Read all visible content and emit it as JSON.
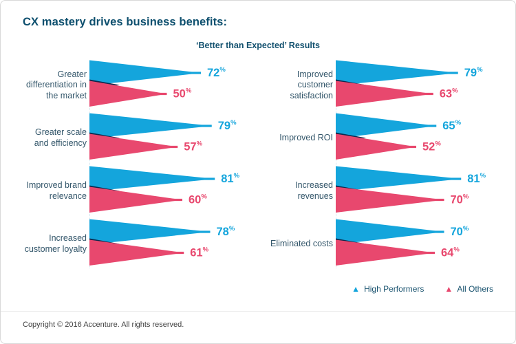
{
  "title": "CX mastery drives business benefits:",
  "subtitle": "‘Better than Expected’ Results",
  "footer": "Copyright © 2016 Accenture. All rights reserved.",
  "colors": {
    "high_performers": "#14a5dc",
    "all_others": "#e8486e",
    "overlap": "#0e2a4e",
    "heading": "#0d4f6e",
    "category_label": "#33566a"
  },
  "legend": [
    {
      "label": "High Performers",
      "color": "#14a5dc",
      "marker": "triangle-up"
    },
    {
      "label": "All Others",
      "color": "#e8486e",
      "marker": "triangle-up"
    }
  ],
  "chart_data": {
    "type": "bar",
    "orientation": "horizontal",
    "unit": "%",
    "title": "‘Better than Expected’ Results",
    "series_names": [
      "High Performers",
      "All Others"
    ],
    "xlim": [
      0,
      100
    ],
    "columns": [
      {
        "rows": [
          {
            "label": "Greater differentiation in the market",
            "high": 72,
            "all": 50
          },
          {
            "label": "Greater scale and efficiency",
            "high": 79,
            "all": 57
          },
          {
            "label": "Improved brand relevance",
            "high": 81,
            "all": 60
          },
          {
            "label": "Increased customer loyalty",
            "high": 78,
            "all": 61
          }
        ]
      },
      {
        "rows": [
          {
            "label": "Improved customer satisfaction",
            "high": 79,
            "all": 63
          },
          {
            "label": "Improved ROI",
            "high": 65,
            "all": 52
          },
          {
            "label": "Increased revenues",
            "high": 81,
            "all": 70
          },
          {
            "label": "Eliminated costs",
            "high": 70,
            "all": 64
          }
        ]
      }
    ]
  }
}
